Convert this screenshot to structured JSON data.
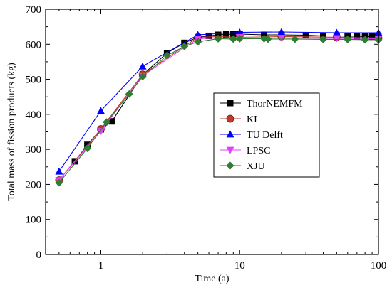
{
  "chart_data": {
    "type": "line",
    "xlabel": "Time (a)",
    "ylabel": "Total mass of fission products (kg)",
    "x_scale": "log",
    "xlim": [
      0.4,
      100
    ],
    "ylim": [
      0,
      700
    ],
    "x_ticks": [
      1,
      10,
      100
    ],
    "x_tick_labels": [
      "1",
      "10",
      "100"
    ],
    "y_ticks": [
      0,
      100,
      200,
      300,
      400,
      500,
      600,
      700
    ],
    "y_tick_labels": [
      "0",
      "100",
      "200",
      "300",
      "400",
      "500",
      "600",
      "700"
    ],
    "grid": false,
    "legend_position": "center-right",
    "series": [
      {
        "name": "ThorNEMFM",
        "color": "#000000",
        "marker": "square",
        "x": [
          0.5,
          0.65,
          0.8,
          1,
          1.2,
          2,
          3,
          4,
          5,
          6,
          7,
          8,
          9,
          10,
          15,
          20,
          30,
          40,
          50,
          60,
          70,
          80,
          90,
          100
        ],
        "y": [
          212,
          266,
          313,
          357,
          380,
          513,
          575,
          604,
          620,
          624,
          627,
          628,
          629,
          629,
          627,
          627,
          626,
          624,
          624,
          623,
          623,
          622,
          622,
          621
        ]
      },
      {
        "name": "KI",
        "color": "#c0392b",
        "marker": "circle",
        "x": [
          0.5,
          1,
          2,
          5,
          10,
          20,
          50,
          100
        ],
        "y": [
          212,
          358,
          514,
          620,
          624,
          622,
          620,
          618
        ]
      },
      {
        "name": "TU Delft",
        "color": "#0000ff",
        "marker": "triangle-up",
        "x": [
          0.5,
          1,
          2,
          5,
          10,
          20,
          50,
          100
        ],
        "y": [
          237,
          410,
          537,
          627,
          634,
          635,
          633,
          633
        ]
      },
      {
        "name": "LPSC",
        "color": "#e040fb",
        "marker": "triangle-down",
        "x": [
          0.5,
          1,
          2,
          5,
          10,
          20,
          50,
          100
        ],
        "y": [
          212,
          352,
          510,
          616,
          620,
          618,
          617,
          616
        ]
      },
      {
        "name": "XJU",
        "color": "#2e7d32",
        "marker": "diamond",
        "x": [
          0.5,
          0.8,
          1.1,
          1.6,
          2,
          3,
          4,
          5,
          7,
          9,
          10,
          15,
          16,
          25,
          40,
          60,
          80,
          100
        ],
        "y": [
          205,
          303,
          378,
          458,
          508,
          568,
          594,
          607,
          616,
          615,
          616,
          616,
          615,
          615,
          614,
          614,
          613,
          613
        ]
      }
    ]
  }
}
